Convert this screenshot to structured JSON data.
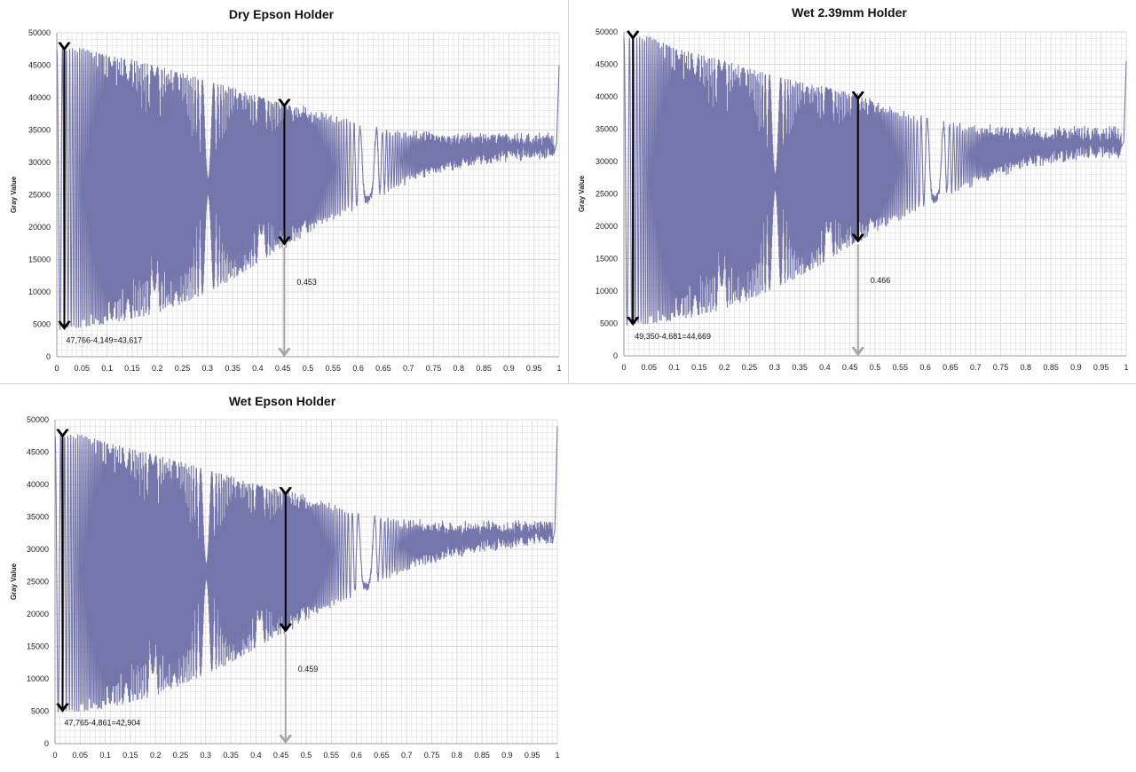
{
  "theme": {
    "series_color": "#7476ab",
    "grid_color": "#d9d9d9",
    "arrow_dark": "#000000",
    "arrow_light": "#a6a6a6"
  },
  "chart_data": [
    {
      "type": "line",
      "title": "Dry Epson Holder",
      "ylabel": "Gray Value",
      "xlabel": "",
      "xlim": [
        0,
        1
      ],
      "ylim": [
        0,
        50000
      ],
      "x_ticks": [
        "0",
        "0.05",
        "0.1",
        "0.15",
        "0.2",
        "0.25",
        "0.3",
        "0.35",
        "0.4",
        "0.45",
        "0.5",
        "0.55",
        "0.6",
        "0.65",
        "0.7",
        "0.75",
        "0.8",
        "0.85",
        "0.9",
        "0.95",
        "1"
      ],
      "y_ticks": [
        "0",
        "5000",
        "10000",
        "15000",
        "20000",
        "25000",
        "30000",
        "35000",
        "40000",
        "45000",
        "50000"
      ],
      "grid": true,
      "series": [
        {
          "envelope_x": [
            0.0,
            0.05,
            0.1,
            0.15,
            0.2,
            0.25,
            0.3,
            0.35,
            0.4,
            0.45,
            0.5,
            0.55,
            0.6,
            0.65,
            0.7,
            0.75,
            0.8,
            0.85,
            0.9,
            0.95,
            0.99
          ],
          "upper": [
            47500,
            47600,
            46500,
            45800,
            44800,
            43800,
            42500,
            41500,
            40200,
            39000,
            38000,
            36800,
            35500,
            34700,
            34200,
            34000,
            33800,
            33800,
            33500,
            33500,
            33500
          ],
          "lower": [
            4150,
            4600,
            5100,
            5800,
            6800,
            8200,
            10000,
            12000,
            14500,
            17000,
            19500,
            21500,
            23500,
            25500,
            27500,
            28500,
            29500,
            30500,
            31000,
            31500,
            31500
          ],
          "end_spike": 45000
        }
      ],
      "annotations": {
        "amplitude_label": "47,766-4,149=43,617",
        "amplitude_at": 0.015,
        "amplitude_top": 47766,
        "amplitude_bottom": 4149,
        "mid_at": 0.453,
        "mid_top": 39000,
        "mid_bottom": 17200,
        "marker_label": "0.453"
      }
    },
    {
      "type": "line",
      "title": "Wet 2.39mm Holder",
      "ylabel": "Gray Value",
      "xlabel": "",
      "xlim": [
        0,
        1
      ],
      "ylim": [
        0,
        50000
      ],
      "x_ticks": [
        "0",
        "0.05",
        "0.1",
        "0.15",
        "0.2",
        "0.25",
        "0.3",
        "0.35",
        "0.4",
        "0.45",
        "0.5",
        "0.55",
        "0.6",
        "0.65",
        "0.7",
        "0.75",
        "0.8",
        "0.85",
        "0.9",
        "0.95",
        "1"
      ],
      "y_ticks": [
        "0",
        "5000",
        "10000",
        "15000",
        "20000",
        "25000",
        "30000",
        "35000",
        "40000",
        "45000",
        "50000"
      ],
      "grid": true,
      "series": [
        {
          "envelope_x": [
            0.0,
            0.05,
            0.1,
            0.15,
            0.2,
            0.25,
            0.3,
            0.35,
            0.4,
            0.45,
            0.5,
            0.55,
            0.6,
            0.65,
            0.7,
            0.75,
            0.8,
            0.85,
            0.9,
            0.95,
            0.99
          ],
          "upper": [
            49000,
            49300,
            47500,
            46500,
            45500,
            44300,
            43200,
            42200,
            41500,
            40500,
            39000,
            37500,
            36300,
            35500,
            35000,
            34800,
            34500,
            34500,
            34500,
            34500,
            34500
          ],
          "lower": [
            4700,
            5000,
            5500,
            6200,
            7300,
            8700,
            10500,
            12300,
            14500,
            17000,
            19500,
            21500,
            23500,
            25500,
            27000,
            28500,
            29500,
            30500,
            31000,
            31500,
            31500
          ],
          "end_spike": 45500
        }
      ],
      "annotations": {
        "amplitude_label": "49,350-4,681=44,669",
        "amplitude_at": 0.018,
        "amplitude_top": 49350,
        "amplitude_bottom": 4681,
        "mid_at": 0.466,
        "mid_top": 40000,
        "mid_bottom": 17500,
        "marker_label": "0.466"
      }
    },
    {
      "type": "line",
      "title": "Wet Epson Holder",
      "ylabel": "Gray Value",
      "xlabel": "",
      "xlim": [
        0,
        1
      ],
      "ylim": [
        0,
        50000
      ],
      "x_ticks": [
        "0",
        "0.05",
        "0.1",
        "0.15",
        "0.2",
        "0.25",
        "0.3",
        "0.35",
        "0.4",
        "0.45",
        "0.5",
        "0.55",
        "0.6",
        "0.65",
        "0.7",
        "0.75",
        "0.8",
        "0.85",
        "0.9",
        "0.95",
        "1"
      ],
      "y_ticks": [
        "0",
        "5000",
        "10000",
        "15000",
        "20000",
        "25000",
        "30000",
        "35000",
        "40000",
        "45000",
        "50000"
      ],
      "grid": true,
      "series": [
        {
          "envelope_x": [
            0.0,
            0.05,
            0.1,
            0.15,
            0.2,
            0.25,
            0.3,
            0.35,
            0.4,
            0.45,
            0.5,
            0.55,
            0.6,
            0.65,
            0.7,
            0.75,
            0.8,
            0.85,
            0.9,
            0.95,
            0.99
          ],
          "upper": [
            47500,
            47700,
            46500,
            45500,
            44500,
            43500,
            42300,
            41200,
            40000,
            39000,
            37800,
            36500,
            35500,
            34500,
            34000,
            33800,
            33500,
            33500,
            33500,
            33500,
            33500
          ],
          "lower": [
            4860,
            5000,
            5500,
            6300,
            7500,
            9000,
            10800,
            12500,
            14800,
            17000,
            19500,
            21500,
            23500,
            25500,
            27500,
            28500,
            29500,
            30500,
            31000,
            31500,
            31500
          ],
          "end_spike": 49000
        }
      ],
      "annotations": {
        "amplitude_label": "47,765-4,861=42,904",
        "amplitude_at": 0.015,
        "amplitude_top": 47765,
        "amplitude_bottom": 4861,
        "mid_at": 0.459,
        "mid_top": 38800,
        "mid_bottom": 17200,
        "marker_label": "0.459"
      }
    }
  ]
}
